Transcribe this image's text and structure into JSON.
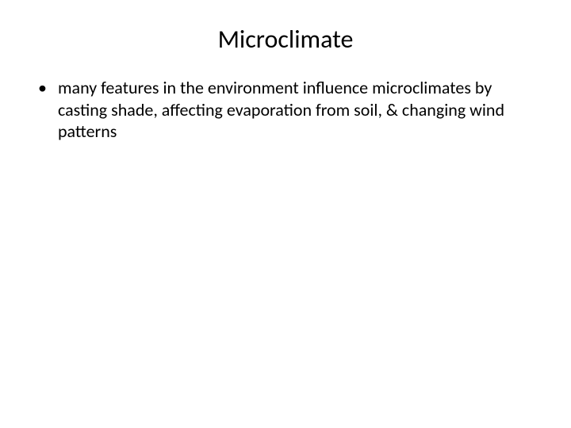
{
  "slide": {
    "title": "Microclimate",
    "title_fontsize": 32,
    "title_color": "#000000",
    "background_color": "#ffffff",
    "bullets": [
      {
        "marker": "•",
        "text": "many features in the environment influence microclimates by casting shade, affecting evaporation from soil, & changing wind patterns"
      }
    ],
    "bullet_fontsize": 22,
    "bullet_color": "#000000",
    "font_family": "Calibri"
  }
}
